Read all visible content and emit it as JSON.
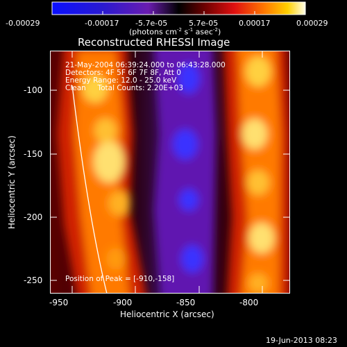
{
  "colorbar": {
    "ticks": [
      "-0.00029",
      "-0.00017",
      "-5.7e-05",
      "5.7e-05",
      "0.00017",
      "0.00029"
    ],
    "unit_main": "(photons cm",
    "unit_exp1": "-2",
    "unit_mid": " s",
    "unit_exp2": "-1",
    "unit_end": " asec",
    "unit_exp3": "-2",
    "unit_close": ")"
  },
  "image": {
    "title": "Reconstructed RHESSI Image",
    "info_lines": [
      "21-May-2004 06:39:24.000 to 06:43:28.000",
      "Detectors: 4F 5F 6F 7F 8F, Att 0",
      "Energy Range: 12.0 - 25.0 keV",
      "Clean     Total Counts: 2.20E+03"
    ],
    "peak_label": "Position of Peak = [-910,-158]"
  },
  "axes": {
    "xlabel": "Heliocentric X (arcsec)",
    "ylabel": "Heliocentric Y (arcsec)",
    "xticks": [
      "-950",
      "-900",
      "-850",
      "-800"
    ],
    "yticks": [
      "-100",
      "-150",
      "-200",
      "-250"
    ],
    "xlim": [
      -957,
      -768
    ],
    "ylim": [
      -265,
      -72
    ]
  },
  "footer": {
    "timestamp": "19-Jun-2013 08:23"
  }
}
